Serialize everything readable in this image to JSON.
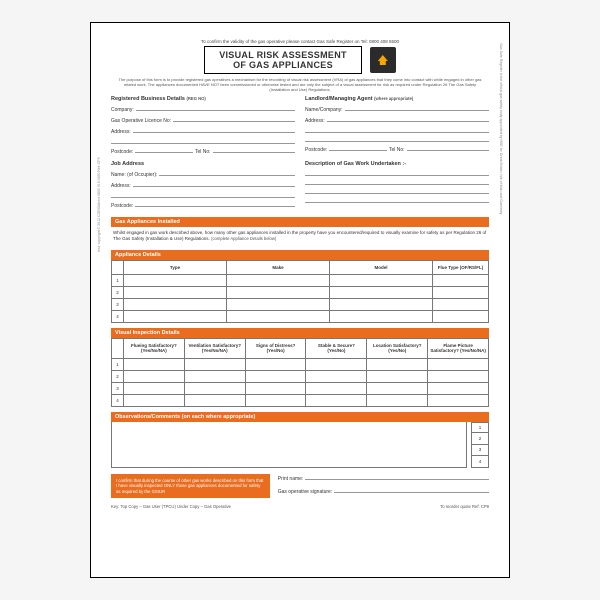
{
  "colors": {
    "accent": "#e96c1f",
    "border": "#777",
    "text": "#333",
    "bg": "#ffffff"
  },
  "header": {
    "top_note": "To confirm the validity of the gas operative please contact Gas Safe Register on Tel: 0800 408 5500",
    "title_line1": "VISUAL RISK ASSESSMENT",
    "title_line2": "OF GAS APPLIANCES",
    "purpose": "The purpose of this form is to provide registered gas operatives a mechanism for the recording of visual risk assessment (VRA) of gas appliances that they come into contact with while engaged in other gas related work. The appliances documented HAVE NOT been commissioned or otherwise tested and are only the subject of a visual assessment for risk as required under Regulation 26 The Gas Safety (Installation and Use) Regulations."
  },
  "details": {
    "reg_title": "Registered Business Details",
    "land_title": "Landlord/Managing Agent",
    "land_note": "(where appropriate)",
    "job_title": "Job Address",
    "desc_title": "Description of Gas Work Undertaken :-",
    "reg_tag": "(REG NO)",
    "labels": {
      "company": "Company:",
      "name_company": "Name/Company:",
      "licence": "Gas Operative Licence No:",
      "address": "Address:",
      "postcode": "Postcode:",
      "tel": "Tel No:",
      "name": "Name: (of Occupier):"
    }
  },
  "section1": {
    "bar": "Gas Appliances Installed",
    "instr": "Whilst engaged in gas work described above, how many other gas appliances installed in the property have you encountered/required to visually examine for safety as per Regulation 26 of The Gas Safety (Installation & Use) Regulations.",
    "note": "(complete Appliance Details below)"
  },
  "appl": {
    "bar": "Appliance Details",
    "cols": [
      "",
      "Type",
      "Make",
      "Model",
      "Flue Type (OF/RS/FL)"
    ],
    "rows": [
      "1",
      "2",
      "3",
      "4"
    ],
    "col_widths": [
      "12px",
      "auto",
      "auto",
      "auto",
      "56px"
    ]
  },
  "insp": {
    "bar": "Visual Inspection Details",
    "cols": [
      "",
      "Flueing Satisfactory? (Yes/No/NA)",
      "Ventilation Satisfactory? (Yes/No/NA)",
      "Signs of Distress? (Yes/No)",
      "Stable & Secure? (Yes/No)",
      "Location Satisfactory? (Yes/No)",
      "Flame Picture Satisfactory? (Yes/No/NA)"
    ],
    "rows": [
      "1",
      "2",
      "3",
      "4"
    ]
  },
  "obs": {
    "bar": "Observations/Comments (on each where appropriate)",
    "nums": [
      "1",
      "2",
      "3",
      "4"
    ]
  },
  "confirm": {
    "text": "I confirm that during the course of other gas works described on this form that I have visually inspected ONLY those gas appliances documented for safety as required by the GSIUR",
    "print": "Print name:",
    "sig": "Gas operative signature:"
  },
  "footer": {
    "left": "Key: Top Copy – Gas User (TPCU)   Under Copy – Gas Operative",
    "right": "To reorder quote Ref: CP9"
  },
  "side_left": "Your copyright © 2012 CORGIdirect 0800 915 0490   Ref: CP9",
  "side_right": "Gas Safe Register is the official gas safety body appointed by HSE for Great Britain, Isle of Man and Guernsey"
}
